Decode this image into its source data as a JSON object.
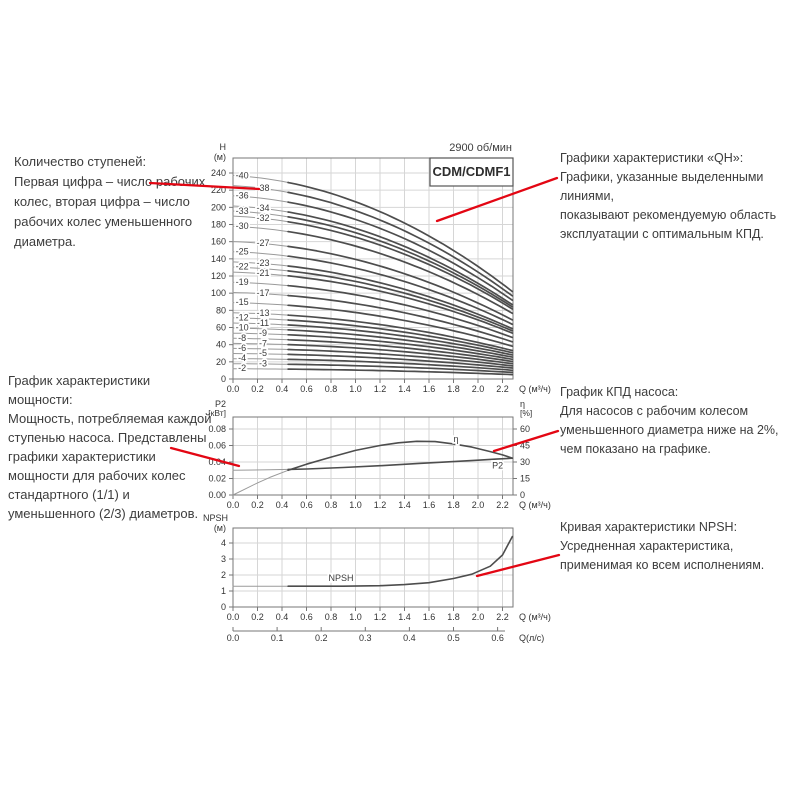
{
  "annotations": {
    "stages": {
      "text": "Количество ступеней:\nПервая цифра – число рабочих\nколес, вторая цифра – число\nрабочих колес уменьшенного\nдиаметра."
    },
    "qh": {
      "text": "Графики характеристики «QH»:\nГрафики, указанные выделенными линиями,\nпоказывают рекомендуемую область\nэксплуатации с оптимальным КПД."
    },
    "power": {
      "text": "График характеристики мощности:\nМощность, потребляемая каждой\nступенью насоса. Представлены\nграфики характеристики\nмощности для рабочих колес\nстандартного (1/1) и\nуменьшенного (2/3) диаметров."
    },
    "efficiency": {
      "text": "График КПД насоса:\nДля насосов с рабочим колесом\nуменьшенного диаметра ниже на 2%,\nчем показано на графике."
    },
    "npsh": {
      "text": "Кривая характеристики NPSH:\nУсредненная характеристика,\nприменимая ко всем исполнениям."
    }
  },
  "colors": {
    "accent_red": "#e30613",
    "curve": "#4d4d4d",
    "curve_light": "#9a9a9a",
    "grid": "#d6d6d6",
    "axis": "#777777",
    "text_dark": "#333333"
  },
  "chart_data": [
    {
      "id": "qh",
      "type": "line",
      "title": "CDM/CDMF1",
      "rpm_label": "2900 об/мин",
      "ylabel": "H",
      "ylabel_unit": "(м)",
      "xlabel": "Q (м³/ч)",
      "x_ticks": [
        0.0,
        0.2,
        0.4,
        0.6,
        0.8,
        1.0,
        1.2,
        1.4,
        1.6,
        1.8,
        2.0,
        2.2
      ],
      "y_ticks": [
        0,
        20,
        40,
        60,
        80,
        100,
        120,
        140,
        160,
        180,
        200,
        220,
        240
      ],
      "xlim": [
        0,
        2.28
      ],
      "ylim": [
        0,
        257
      ],
      "grid": true,
      "recommended_range_start_q": 0.45,
      "curve_shape": {
        "lin": 0.08,
        "quad": 0.49
      },
      "stage_curves": [
        {
          "label": "-40",
          "stages": 40,
          "h0_m": 237.2,
          "label_col": "a"
        },
        {
          "label": "-38",
          "stages": 38,
          "h0_m": 225.3,
          "label_col": "b"
        },
        {
          "label": "-36",
          "stages": 36,
          "h0_m": 213.5,
          "label_col": "a"
        },
        {
          "label": "-34",
          "stages": 34,
          "h0_m": 201.6,
          "label_col": "b"
        },
        {
          "label": "-33",
          "stages": 33,
          "h0_m": 195.7,
          "label_col": "a"
        },
        {
          "label": "-32",
          "stages": 32,
          "h0_m": 189.8,
          "label_col": "b"
        },
        {
          "label": "-30",
          "stages": 30,
          "h0_m": 177.9,
          "label_col": "a"
        },
        {
          "label": "-27",
          "stages": 27,
          "h0_m": 160.1,
          "label_col": "b"
        },
        {
          "label": "-25",
          "stages": 25,
          "h0_m": 148.3,
          "label_col": "a"
        },
        {
          "label": "-23",
          "stages": 23,
          "h0_m": 136.4,
          "label_col": "b"
        },
        {
          "label": "-22",
          "stages": 22,
          "h0_m": 130.5,
          "label_col": "a"
        },
        {
          "label": "-21",
          "stages": 21,
          "h0_m": 124.5,
          "label_col": "b"
        },
        {
          "label": "-19",
          "stages": 19,
          "h0_m": 112.7,
          "label_col": "a"
        },
        {
          "label": "-17",
          "stages": 17,
          "h0_m": 100.8,
          "label_col": "b"
        },
        {
          "label": "-15",
          "stages": 15,
          "h0_m": 89.0,
          "label_col": "a"
        },
        {
          "label": "-13",
          "stages": 13,
          "h0_m": 77.1,
          "label_col": "b"
        },
        {
          "label": "-12",
          "stages": 12,
          "h0_m": 71.2,
          "label_col": "a"
        },
        {
          "label": "-11",
          "stages": 11,
          "h0_m": 65.2,
          "label_col": "b"
        },
        {
          "label": "-10",
          "stages": 10,
          "h0_m": 59.3,
          "label_col": "a"
        },
        {
          "label": "-9",
          "stages": 9,
          "h0_m": 53.4,
          "label_col": "b"
        },
        {
          "label": "-8",
          "stages": 8,
          "h0_m": 47.4,
          "label_col": "a"
        },
        {
          "label": "-7",
          "stages": 7,
          "h0_m": 41.5,
          "label_col": "b"
        },
        {
          "label": "-6",
          "stages": 6,
          "h0_m": 35.6,
          "label_col": "a"
        },
        {
          "label": "-5",
          "stages": 5,
          "h0_m": 29.7,
          "label_col": "b"
        },
        {
          "label": "-4",
          "stages": 4,
          "h0_m": 23.7,
          "label_col": "a"
        },
        {
          "label": "-3",
          "stages": 3,
          "h0_m": 17.8,
          "label_col": "b"
        },
        {
          "label": "-2",
          "stages": 2,
          "h0_m": 11.9,
          "label_col": "a"
        }
      ]
    },
    {
      "id": "power_eff",
      "type": "line",
      "left_axis": {
        "label": "P2",
        "unit": "[кВт]",
        "ticks": [
          0.0,
          0.02,
          0.04,
          0.06,
          0.08
        ]
      },
      "right_axis": {
        "label": "η",
        "unit": "[%]",
        "ticks": [
          0,
          15,
          30,
          45,
          60
        ]
      },
      "xlabel": "Q (м³/ч)",
      "x_ticks": [
        0.0,
        0.2,
        0.4,
        0.6,
        0.8,
        1.0,
        1.2,
        1.4,
        1.6,
        1.8,
        2.0,
        2.2
      ],
      "grid": true,
      "series": [
        {
          "name": "P2",
          "axis": "left",
          "label_pos": {
            "q": 2.16,
            "v": 0.0352
          },
          "points": [
            [
              0,
              0.03
            ],
            [
              0.3,
              0.0305
            ],
            [
              0.6,
              0.0315
            ],
            [
              0.9,
              0.0333
            ],
            [
              1.2,
              0.0355
            ],
            [
              1.5,
              0.038
            ],
            [
              1.8,
              0.0405
            ],
            [
              2.0,
              0.0422
            ],
            [
              2.15,
              0.0435
            ],
            [
              2.28,
              0.0446
            ]
          ]
        },
        {
          "name": "η",
          "axis": "right",
          "label_pos": {
            "q": 1.82,
            "v": 50.5
          },
          "points": [
            [
              0,
              0
            ],
            [
              0.1,
              5.5
            ],
            [
              0.2,
              11
            ],
            [
              0.3,
              16
            ],
            [
              0.45,
              22.5
            ],
            [
              0.6,
              28
            ],
            [
              0.8,
              34.5
            ],
            [
              1.0,
              40.5
            ],
            [
              1.2,
              45
            ],
            [
              1.35,
              47.5
            ],
            [
              1.5,
              48.8
            ],
            [
              1.65,
              48.5
            ],
            [
              1.8,
              46.5
            ],
            [
              1.95,
              43.5
            ],
            [
              2.1,
              39.5
            ],
            [
              2.2,
              36.5
            ],
            [
              2.28,
              33.5
            ]
          ]
        }
      ]
    },
    {
      "id": "npsh",
      "type": "line",
      "ylabel": "NPSH",
      "ylabel_unit": "(м)",
      "y_ticks": [
        0,
        1,
        2,
        3,
        4
      ],
      "xlabel": "Q (м³/ч)",
      "x_ticks": [
        0.0,
        0.2,
        0.4,
        0.6,
        0.8,
        1.0,
        1.2,
        1.4,
        1.6,
        1.8,
        2.0,
        2.2
      ],
      "second_x_axis": {
        "label": "Q(л/с)",
        "ticks": [
          0.0,
          0.1,
          0.2,
          0.3,
          0.4,
          0.5,
          0.6
        ],
        "m3h_per_unit": 3.6
      },
      "grid": true,
      "series": [
        {
          "name": "NPSH",
          "label_pos": {
            "q": 0.78,
            "v": 1.78
          },
          "points": [
            [
              0,
              1.3
            ],
            [
              0.5,
              1.3
            ],
            [
              0.9,
              1.3
            ],
            [
              1.2,
              1.33
            ],
            [
              1.4,
              1.4
            ],
            [
              1.6,
              1.52
            ],
            [
              1.8,
              1.78
            ],
            [
              1.95,
              2.05
            ],
            [
              2.1,
              2.55
            ],
            [
              2.2,
              3.25
            ],
            [
              2.28,
              4.4
            ]
          ]
        }
      ]
    }
  ]
}
